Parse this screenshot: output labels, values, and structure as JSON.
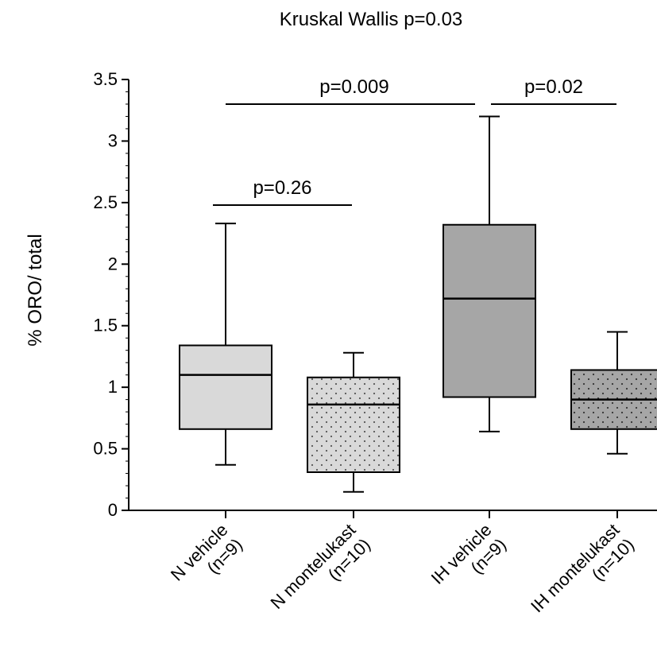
{
  "chart_data": {
    "type": "box",
    "title": "Kruskal Wallis p=0.03",
    "xlabel": "",
    "ylabel": "% ORO/ total",
    "ylim": [
      0,
      3.5
    ],
    "y_ticks": [
      "0",
      "0.5",
      "1",
      "1.5",
      "2",
      "2.5",
      "3",
      "3.5"
    ],
    "grid": false,
    "boxes": [
      {
        "label_line1": "N vehicle",
        "label_line2": "(n=9)",
        "min": 0.37,
        "q1": 0.66,
        "median": 1.1,
        "q3": 1.34,
        "max": 2.33,
        "fill": "#d9d9d9",
        "dotted": false
      },
      {
        "label_line1": "N montelukast",
        "label_line2": "(n=10)",
        "min": 0.15,
        "q1": 0.31,
        "median": 0.86,
        "q3": 1.08,
        "max": 1.28,
        "fill": "#d9d9d9",
        "dotted": true
      },
      {
        "label_line1": "IH vehicle",
        "label_line2": "(n=9)",
        "min": 0.64,
        "q1": 0.92,
        "median": 1.72,
        "q3": 2.32,
        "max": 3.2,
        "fill": "#a6a6a6",
        "dotted": false
      },
      {
        "label_line1": "IH montelukast",
        "label_line2": "(n=10)",
        "min": 0.46,
        "q1": 0.66,
        "median": 0.9,
        "q3": 1.14,
        "max": 1.45,
        "fill": "#a6a6a6",
        "dotted": true
      }
    ],
    "comparisons": [
      {
        "label": "p=0.26",
        "from": 0,
        "to": 1,
        "y": 2.48
      },
      {
        "label": "p=0.009",
        "from": 0,
        "to": 2,
        "y": 3.3
      },
      {
        "label": "p=0.02",
        "from": 2,
        "to": 3,
        "y": 3.3
      }
    ]
  }
}
